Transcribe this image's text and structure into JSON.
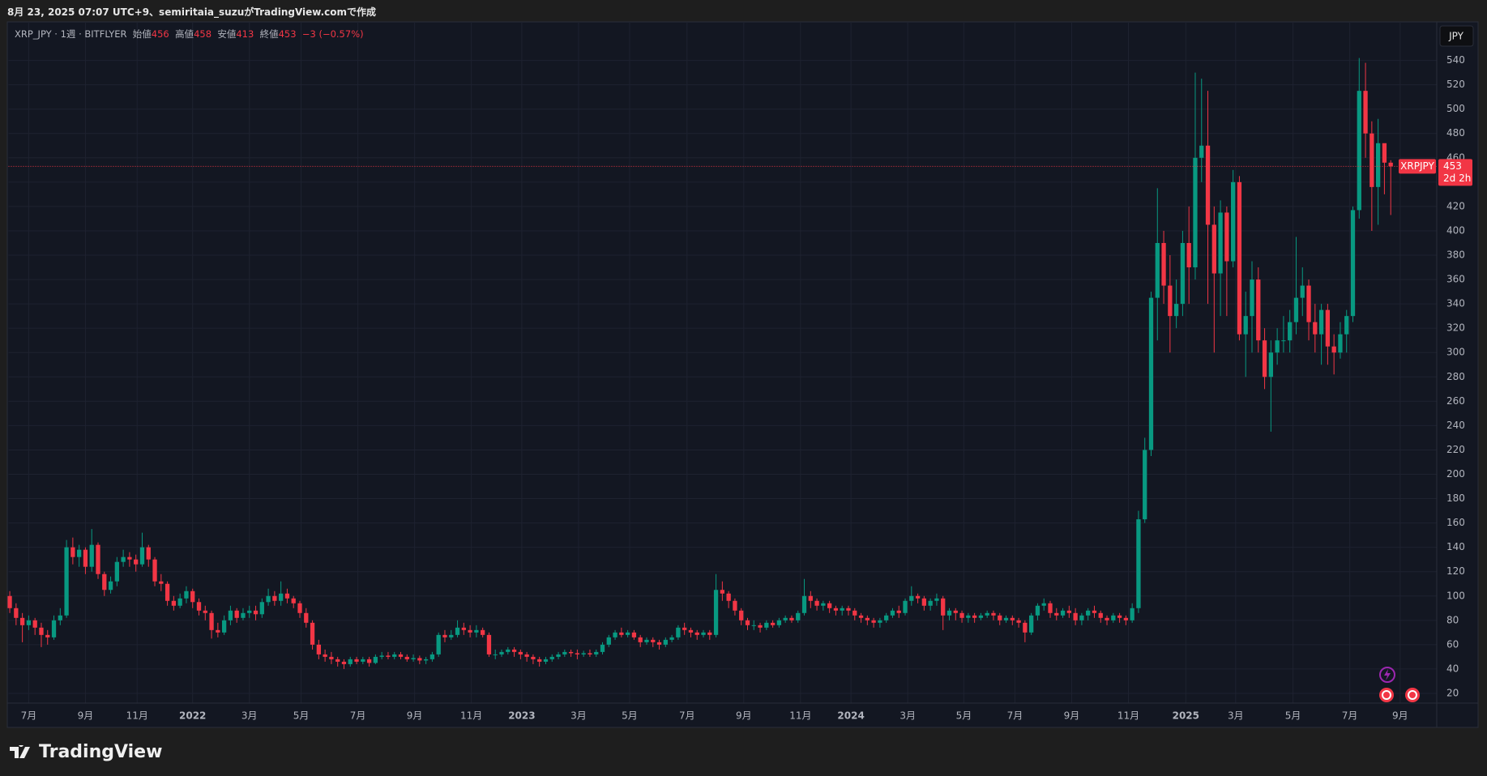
{
  "header": "8月 23, 2025 07:07 UTC+9、semiritaia_suzuがTradingView.comで作成",
  "brand": "TradingView",
  "currency": "JPY",
  "chart_data": {
    "type": "candlestick",
    "symbol": "XRP_JPY · 1週 · BITFLYER",
    "open_label": "始値",
    "high_label": "高値",
    "low_label": "安値",
    "close_label": "終値",
    "change": "−3 (−0.57%)",
    "price_label": "XRPJPY",
    "countdown": "2d 2h",
    "up_color": "#089981",
    "down_color": "#f23645",
    "grid": true,
    "open": [
      100,
      90,
      82,
      76,
      80,
      74,
      68,
      66,
      80,
      84,
      140,
      132,
      138,
      124,
      142,
      118,
      105,
      112,
      128,
      132,
      130,
      126,
      140,
      130,
      112,
      110,
      96,
      92,
      98,
      104,
      95,
      88,
      86,
      72,
      70,
      80,
      88,
      82,
      86,
      88,
      85,
      95,
      100,
      96,
      102,
      98,
      94,
      86,
      78,
      60,
      52,
      50,
      48,
      46,
      44,
      48,
      46,
      48,
      45,
      50,
      51,
      50,
      52,
      50,
      48,
      49,
      47,
      48,
      52,
      68,
      66,
      68,
      74,
      72,
      70,
      72,
      68,
      52,
      52,
      54,
      56,
      54,
      52,
      50,
      48,
      46,
      48,
      50,
      52,
      54,
      53,
      52,
      53,
      52,
      54,
      60,
      66,
      70,
      68,
      70,
      66,
      62,
      64,
      62,
      60,
      64,
      66,
      74,
      72,
      70,
      68,
      70,
      68,
      105,
      102,
      96,
      88,
      80,
      76,
      76,
      74,
      78,
      76,
      80,
      82,
      80,
      86,
      100,
      96,
      92,
      94,
      90,
      88,
      90,
      88,
      84,
      82,
      80,
      78,
      80,
      84,
      88,
      86,
      96,
      100,
      98,
      92,
      96,
      98,
      84,
      88,
      86,
      82,
      84,
      82,
      84,
      86,
      84,
      80,
      82,
      80,
      78,
      70,
      84,
      92,
      94,
      86,
      84,
      88,
      86,
      80,
      84,
      88,
      86,
      82,
      80,
      84,
      82,
      80,
      90,
      163,
      220,
      345,
      390,
      355,
      330,
      340,
      390,
      370,
      460,
      470,
      405,
      365,
      415,
      375,
      440,
      315,
      330,
      360,
      310,
      280,
      300,
      310,
      310,
      325,
      345,
      355,
      325,
      315,
      335,
      305,
      300,
      315,
      330,
      417,
      515,
      480,
      436,
      472,
      456
    ],
    "high": [
      104,
      94,
      86,
      84,
      82,
      78,
      72,
      84,
      90,
      146,
      148,
      142,
      140,
      155,
      144,
      120,
      116,
      132,
      138,
      136,
      134,
      152,
      142,
      132,
      118,
      112,
      100,
      102,
      108,
      106,
      98,
      92,
      88,
      78,
      84,
      92,
      90,
      90,
      92,
      92,
      98,
      106,
      104,
      112,
      106,
      100,
      96,
      90,
      80,
      64,
      56,
      54,
      50,
      48,
      50,
      50,
      50,
      50,
      52,
      54,
      54,
      54,
      54,
      52,
      52,
      51,
      50,
      54,
      70,
      72,
      72,
      80,
      78,
      76,
      76,
      74,
      70,
      56,
      56,
      58,
      58,
      56,
      54,
      52,
      50,
      50,
      52,
      54,
      56,
      56,
      56,
      55,
      56,
      56,
      62,
      68,
      72,
      74,
      72,
      72,
      68,
      66,
      66,
      64,
      66,
      68,
      76,
      78,
      74,
      72,
      72,
      72,
      118,
      112,
      104,
      98,
      90,
      82,
      80,
      78,
      80,
      80,
      82,
      84,
      84,
      88,
      114,
      104,
      98,
      96,
      96,
      92,
      92,
      92,
      90,
      86,
      84,
      82,
      82,
      86,
      90,
      92,
      98,
      108,
      102,
      100,
      98,
      102,
      100,
      90,
      90,
      88,
      86,
      86,
      86,
      88,
      88,
      86,
      84,
      84,
      82,
      80,
      86,
      94,
      98,
      96,
      90,
      90,
      92,
      90,
      86,
      90,
      92,
      88,
      84,
      86,
      86,
      84,
      94,
      170,
      230,
      350,
      435,
      400,
      380,
      360,
      400,
      420,
      530,
      525,
      515,
      420,
      425,
      420,
      450,
      445,
      350,
      375,
      370,
      320,
      310,
      320,
      330,
      335,
      395,
      370,
      360,
      340,
      340,
      340,
      315,
      325,
      335,
      420,
      542,
      538,
      490,
      492,
      470,
      458
    ],
    "low": [
      86,
      76,
      62,
      72,
      68,
      58,
      60,
      64,
      76,
      82,
      126,
      124,
      118,
      120,
      114,
      100,
      102,
      108,
      124,
      124,
      120,
      124,
      124,
      108,
      104,
      92,
      88,
      90,
      94,
      90,
      84,
      80,
      65,
      66,
      68,
      76,
      78,
      80,
      82,
      80,
      82,
      92,
      92,
      92,
      94,
      90,
      82,
      74,
      56,
      48,
      46,
      44,
      42,
      40,
      42,
      44,
      44,
      42,
      44,
      48,
      48,
      48,
      48,
      46,
      46,
      44,
      44,
      46,
      50,
      62,
      64,
      66,
      68,
      66,
      66,
      66,
      50,
      48,
      50,
      52,
      50,
      48,
      46,
      44,
      42,
      44,
      46,
      48,
      50,
      50,
      48,
      50,
      50,
      50,
      52,
      58,
      64,
      66,
      66,
      64,
      58,
      60,
      58,
      56,
      58,
      62,
      64,
      68,
      66,
      64,
      66,
      64,
      66,
      96,
      90,
      84,
      76,
      72,
      72,
      70,
      72,
      74,
      74,
      78,
      78,
      78,
      84,
      90,
      88,
      88,
      86,
      84,
      84,
      84,
      80,
      78,
      76,
      74,
      74,
      78,
      82,
      82,
      84,
      92,
      94,
      88,
      88,
      92,
      72,
      80,
      80,
      78,
      78,
      78,
      80,
      82,
      80,
      76,
      78,
      76,
      74,
      62,
      68,
      80,
      88,
      82,
      80,
      82,
      82,
      76,
      76,
      80,
      82,
      78,
      76,
      78,
      78,
      76,
      78,
      86,
      160,
      215,
      310,
      340,
      300,
      320,
      330,
      340,
      360,
      440,
      340,
      300,
      330,
      330,
      370,
      310,
      280,
      300,
      300,
      270,
      235,
      290,
      300,
      300,
      315,
      330,
      310,
      300,
      290,
      290,
      282,
      295,
      300,
      325,
      410,
      460,
      400,
      405,
      430,
      413
    ],
    "close": [
      90,
      82,
      76,
      80,
      74,
      68,
      66,
      80,
      84,
      140,
      132,
      138,
      124,
      142,
      118,
      105,
      112,
      128,
      132,
      130,
      126,
      140,
      130,
      112,
      110,
      96,
      92,
      98,
      104,
      95,
      88,
      86,
      72,
      70,
      80,
      88,
      82,
      86,
      88,
      85,
      95,
      100,
      96,
      102,
      98,
      94,
      86,
      78,
      60,
      52,
      50,
      48,
      46,
      44,
      48,
      46,
      48,
      45,
      50,
      51,
      50,
      52,
      50,
      48,
      49,
      47,
      48,
      52,
      68,
      66,
      68,
      74,
      72,
      70,
      72,
      68,
      52,
      52,
      54,
      56,
      54,
      52,
      50,
      48,
      46,
      48,
      50,
      52,
      54,
      53,
      52,
      53,
      52,
      54,
      60,
      66,
      70,
      68,
      70,
      66,
      62,
      64,
      62,
      60,
      64,
      66,
      74,
      72,
      70,
      68,
      70,
      68,
      105,
      102,
      96,
      88,
      80,
      76,
      76,
      74,
      78,
      76,
      80,
      82,
      80,
      86,
      100,
      96,
      92,
      94,
      90,
      88,
      90,
      88,
      84,
      82,
      80,
      78,
      80,
      84,
      88,
      86,
      96,
      100,
      98,
      92,
      96,
      98,
      84,
      88,
      86,
      82,
      84,
      82,
      84,
      86,
      84,
      80,
      82,
      80,
      78,
      70,
      84,
      92,
      94,
      86,
      84,
      88,
      86,
      80,
      84,
      88,
      86,
      82,
      80,
      84,
      82,
      80,
      90,
      163,
      220,
      345,
      390,
      355,
      330,
      340,
      390,
      370,
      460,
      470,
      405,
      365,
      415,
      375,
      440,
      315,
      330,
      360,
      310,
      280,
      300,
      310,
      310,
      325,
      345,
      355,
      325,
      315,
      335,
      305,
      300,
      315,
      330,
      417,
      515,
      480,
      436,
      472,
      456,
      453
    ],
    "xlim": [
      -0.2,
      226.3
    ],
    "xticks": [
      {
        "value": 3,
        "label": "7月"
      },
      {
        "value": 12,
        "label": "9月"
      },
      {
        "value": 20.2,
        "label": "11月"
      },
      {
        "value": 29,
        "label": "2022"
      },
      {
        "value": 38,
        "label": "3月"
      },
      {
        "value": 46.2,
        "label": "5月"
      },
      {
        "value": 55.2,
        "label": "7月"
      },
      {
        "value": 64.2,
        "label": "9月"
      },
      {
        "value": 73.2,
        "label": "11月"
      },
      {
        "value": 81.2,
        "label": "2023"
      },
      {
        "value": 90.2,
        "label": "3月"
      },
      {
        "value": 98.3,
        "label": "5月"
      },
      {
        "value": 107.4,
        "label": "7月"
      },
      {
        "value": 116.4,
        "label": "9月"
      },
      {
        "value": 125.4,
        "label": "11月"
      },
      {
        "value": 133.4,
        "label": "2024"
      },
      {
        "value": 142.4,
        "label": "3月"
      },
      {
        "value": 151.3,
        "label": "5月"
      },
      {
        "value": 159.4,
        "label": "7月"
      },
      {
        "value": 168.4,
        "label": "9月"
      },
      {
        "value": 177.4,
        "label": "11月"
      },
      {
        "value": 186.5,
        "label": "2025"
      },
      {
        "value": 194.4,
        "label": "3月"
      },
      {
        "value": 203.5,
        "label": "5月"
      },
      {
        "value": 212.5,
        "label": "7月"
      },
      {
        "value": 220.5,
        "label": "9月"
      }
    ],
    "ylim": [
      12,
      571
    ],
    "yticks": [
      20,
      40,
      60,
      80,
      100,
      120,
      140,
      160,
      180,
      200,
      220,
      240,
      260,
      280,
      300,
      320,
      340,
      360,
      380,
      400,
      420,
      440,
      460,
      480,
      500,
      520,
      540
    ]
  }
}
